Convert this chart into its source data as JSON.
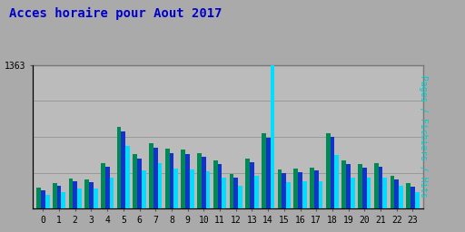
{
  "title": "Acces horaire pour Aout 2017",
  "title_color": "#0000cc",
  "title_fontsize": 10,
  "ylabel_right": "Pages / Fichiers / Hits",
  "ylabel_right_color": "#00cccc",
  "hours": [
    0,
    1,
    2,
    3,
    4,
    5,
    6,
    7,
    8,
    9,
    10,
    11,
    12,
    13,
    14,
    15,
    16,
    17,
    18,
    19,
    20,
    21,
    22,
    23
  ],
  "pages": [
    200,
    240,
    290,
    280,
    430,
    780,
    520,
    620,
    570,
    560,
    530,
    460,
    330,
    480,
    720,
    370,
    380,
    390,
    720,
    460,
    420,
    430,
    310,
    240
  ],
  "fichiers": [
    175,
    215,
    260,
    250,
    400,
    730,
    480,
    580,
    530,
    520,
    490,
    420,
    295,
    445,
    670,
    340,
    350,
    360,
    680,
    425,
    390,
    400,
    280,
    210
  ],
  "hits": [
    130,
    160,
    195,
    190,
    295,
    600,
    360,
    430,
    380,
    375,
    355,
    295,
    215,
    310,
    1363,
    250,
    260,
    265,
    510,
    295,
    295,
    295,
    215,
    160
  ],
  "pages_color": "#008855",
  "fichiers_color": "#1133cc",
  "hits_color": "#00ddff",
  "bg_color": "#aaaaaa",
  "plot_bg": "#bbbbbb",
  "ylim_max": 1363,
  "bar_width": 0.27,
  "grid_color": "#999999",
  "grid_lines": [
    340,
    682,
    1023,
    1363
  ]
}
